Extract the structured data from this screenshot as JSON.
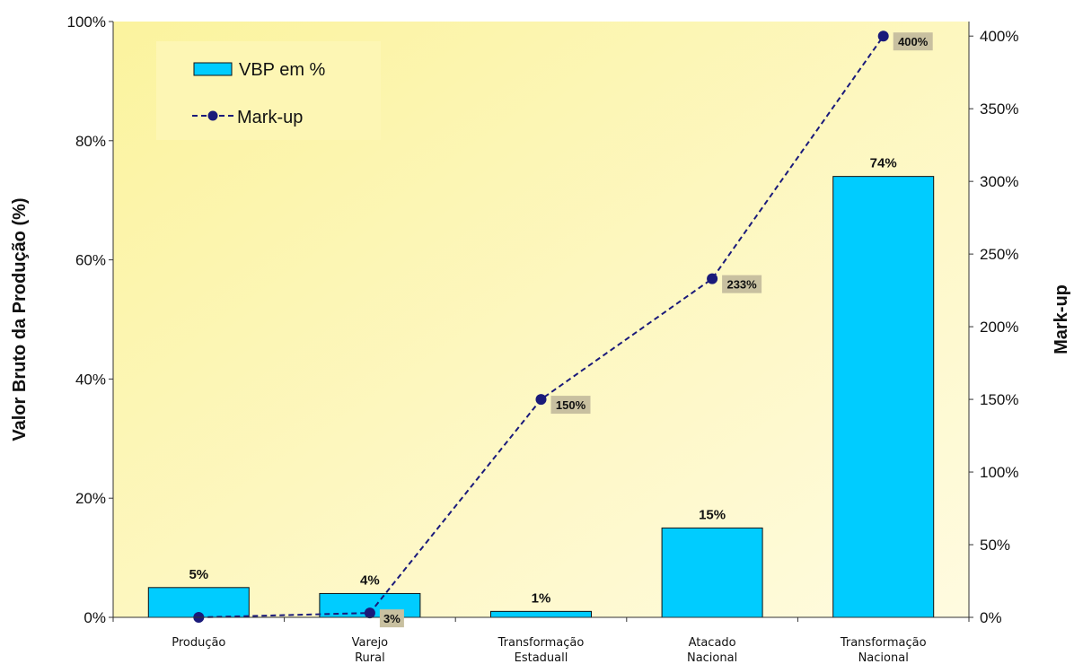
{
  "chart_data": {
    "type": "bar",
    "categories": [
      [
        "Produção"
      ],
      [
        "Varejo",
        "Rural"
      ],
      [
        "Transformação",
        "Estaduall"
      ],
      [
        "Atacado",
        "Nacional"
      ],
      [
        "Transformação",
        "Nacional"
      ]
    ],
    "series": [
      {
        "name": "VBP em %",
        "type": "bar",
        "axis": "left",
        "values": [
          5,
          4,
          1,
          15,
          74
        ],
        "labels": [
          "5%",
          "4%",
          "1%",
          "15%",
          "74%"
        ],
        "color": "#00ccff"
      },
      {
        "name": "Mark-up",
        "type": "line",
        "axis": "right",
        "values": [
          0,
          3,
          150,
          233,
          400
        ],
        "labels": [
          "",
          "3%",
          "150%",
          "233%",
          "400%"
        ],
        "color": "#1a1a7a",
        "line_style": "dashed",
        "marker": "circle"
      }
    ],
    "y_left": {
      "label": "Valor Bruto da Produção (%)",
      "range": [
        0,
        100
      ],
      "ticks": [
        0,
        20,
        40,
        60,
        80,
        100
      ],
      "tick_labels": [
        "0%",
        "20%",
        "40%",
        "60%",
        "80%",
        "100%"
      ]
    },
    "y_right": {
      "label": "Mark-up",
      "range": [
        0,
        410
      ],
      "ticks": [
        0,
        50,
        100,
        150,
        200,
        250,
        300,
        350,
        400
      ],
      "tick_labels": [
        "0%",
        "50%",
        "100%",
        "150%",
        "200%",
        "250%",
        "300%",
        "350%",
        "400%"
      ]
    },
    "legend": {
      "position": "top-left",
      "entries": [
        "VBP em %",
        "Mark-up"
      ]
    },
    "grid": false,
    "colors": {
      "plot_background_top": "#fbf39e",
      "plot_background_bottom": "#fffbe0",
      "line_label_box": "#c8c0a0"
    }
  }
}
